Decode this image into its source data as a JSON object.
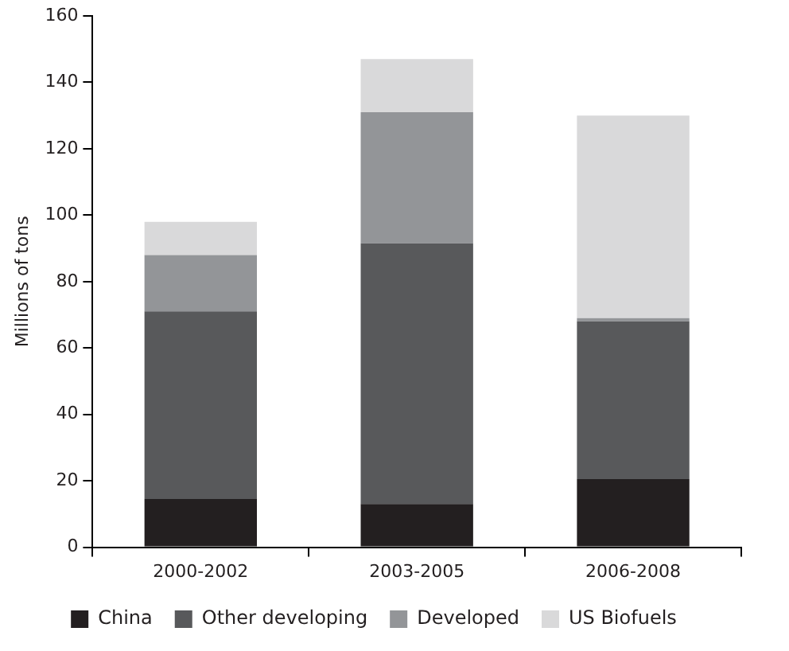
{
  "chart_data": {
    "type": "bar",
    "stacked": true,
    "ylabel": "Millions of tons",
    "categories": [
      "2000-2002",
      "2003-2005",
      "2006-2008"
    ],
    "series": [
      {
        "name": "China",
        "color": "#231f20",
        "values": [
          14.5,
          13,
          20.5
        ]
      },
      {
        "name": "Other developing",
        "color": "#58595b",
        "values": [
          56.5,
          78.5,
          47.5
        ]
      },
      {
        "name": "Developed",
        "color": "#939598",
        "values": [
          17,
          39.5,
          1
        ]
      },
      {
        "name": "US Biofuels",
        "color": "#d9d9da",
        "values": [
          10,
          16,
          61
        ]
      }
    ],
    "ylim": [
      0,
      160
    ],
    "yticks": [
      0,
      20,
      40,
      60,
      80,
      100,
      120,
      140,
      160
    ],
    "grid": false,
    "legend": "bottom"
  }
}
